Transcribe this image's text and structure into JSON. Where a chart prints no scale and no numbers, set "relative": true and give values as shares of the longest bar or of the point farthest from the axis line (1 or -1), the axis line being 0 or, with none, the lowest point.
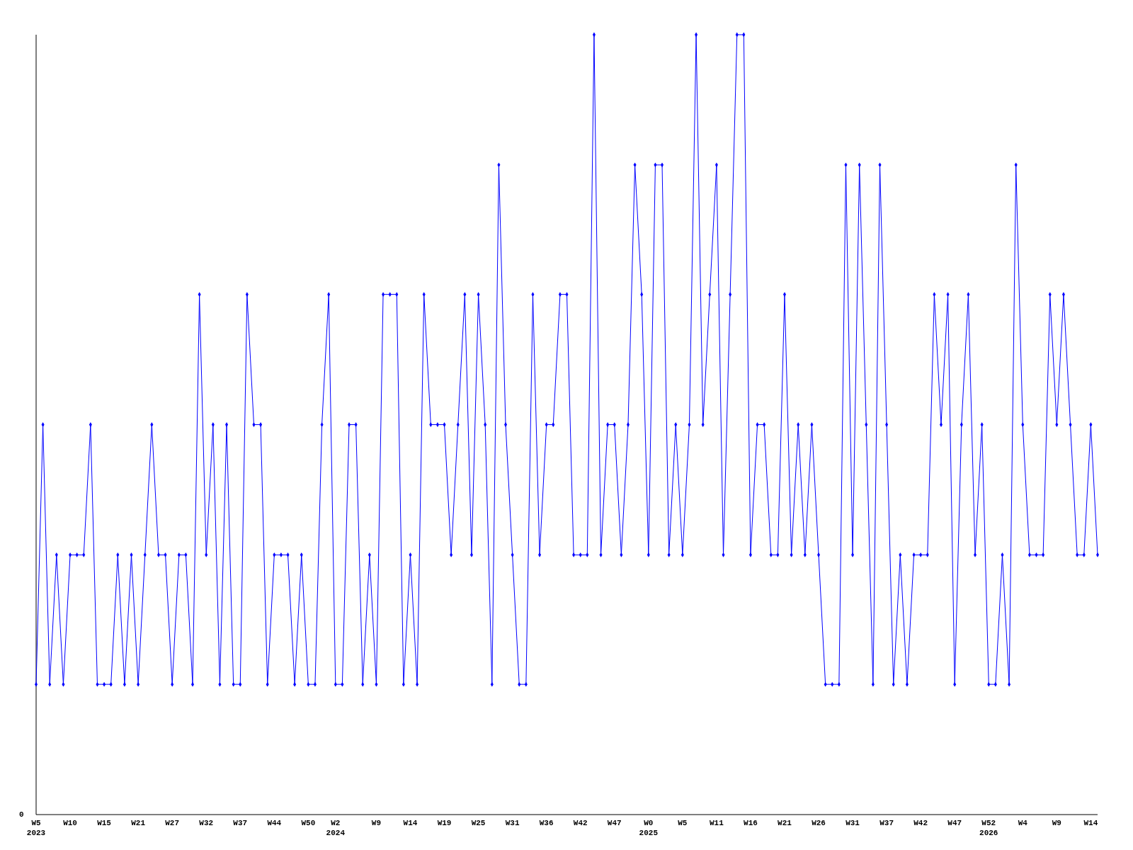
{
  "chart_data": {
    "type": "line",
    "relative": true,
    "marker": "diamond",
    "line_style": "solid",
    "categories": [
      "W5\n2023",
      null,
      null,
      null,
      null,
      "W10",
      null,
      null,
      null,
      null,
      "W15",
      null,
      null,
      null,
      null,
      "W21",
      null,
      null,
      null,
      null,
      "W27",
      null,
      null,
      null,
      null,
      "W32",
      null,
      null,
      null,
      null,
      "W37",
      null,
      null,
      null,
      null,
      "W44",
      null,
      null,
      null,
      null,
      "W50",
      null,
      null,
      null,
      "W2\n2024",
      null,
      null,
      null,
      null,
      null,
      "W9",
      null,
      null,
      null,
      null,
      "W14",
      null,
      null,
      null,
      null,
      "W19",
      null,
      null,
      null,
      null,
      "W25",
      null,
      null,
      null,
      null,
      "W31",
      null,
      null,
      null,
      null,
      "W36",
      null,
      null,
      null,
      null,
      "W42",
      null,
      null,
      null,
      null,
      "W47",
      null,
      null,
      null,
      null,
      "W0\n2025",
      null,
      null,
      null,
      null,
      "W5",
      null,
      null,
      null,
      null,
      "W11",
      null,
      null,
      null,
      null,
      "W16",
      null,
      null,
      null,
      null,
      "W21",
      null,
      null,
      null,
      null,
      "W26",
      null,
      null,
      null,
      null,
      "W31",
      null,
      null,
      null,
      null,
      "W37",
      null,
      null,
      null,
      null,
      "W42",
      null,
      null,
      null,
      null,
      "W47",
      null,
      null,
      null,
      null,
      "W52\n2026",
      null,
      null,
      null,
      null,
      "W4",
      null,
      null,
      null,
      null,
      "W9",
      null,
      null,
      null,
      null,
      "W14",
      null
    ],
    "annotations": [
      "0"
    ],
    "series": [
      {
        "color": "#0000ff",
        "values": [
          0.167,
          0.5,
          0.167,
          0.333,
          0.167,
          0.333,
          0.333,
          0.333,
          0.5,
          0.167,
          0.167,
          0.167,
          0.333,
          0.167,
          0.333,
          0.167,
          0.333,
          0.5,
          0.333,
          0.333,
          0.167,
          0.333,
          0.333,
          0.167,
          0.667,
          0.333,
          0.5,
          0.167,
          0.5,
          0.167,
          0.167,
          0.667,
          0.5,
          0.5,
          0.167,
          0.333,
          0.333,
          0.333,
          0.167,
          0.333,
          0.167,
          0.167,
          0.5,
          0.667,
          0.167,
          0.167,
          0.5,
          0.5,
          0.167,
          0.333,
          0.167,
          0.667,
          0.667,
          0.667,
          0.167,
          0.333,
          0.167,
          0.667,
          0.5,
          0.5,
          0.5,
          0.333,
          0.5,
          0.667,
          0.333,
          0.667,
          0.5,
          0.167,
          0.833,
          0.5,
          0.333,
          0.167,
          0.167,
          0.667,
          0.333,
          0.5,
          0.5,
          0.667,
          0.667,
          0.333,
          0.333,
          0.333,
          1,
          0.333,
          0.5,
          0.5,
          0.333,
          0.5,
          0.833,
          0.667,
          0.333,
          0.833,
          0.833,
          0.333,
          0.5,
          0.333,
          0.5,
          1,
          0.5,
          0.667,
          0.833,
          0.333,
          0.667,
          1,
          1,
          0.333,
          0.5,
          0.5,
          0.333,
          0.333,
          0.667,
          0.333,
          0.5,
          0.333,
          0.5,
          0.333,
          0.167,
          0.167,
          0.167,
          0.833,
          0.333,
          0.833,
          0.5,
          0.167,
          0.833,
          0.5,
          0.167,
          0.333,
          0.167,
          0.333,
          0.333,
          0.333,
          0.667,
          0.5,
          0.667,
          0.167,
          0.5,
          0.667,
          0.333,
          0.5,
          0.167,
          0.167,
          0.333,
          0.167,
          0.833,
          0.5,
          0.333,
          0.333,
          0.333,
          0.667,
          0.5,
          0.667,
          0.5,
          0.333,
          0.333,
          0.5,
          0.333
        ]
      }
    ]
  }
}
